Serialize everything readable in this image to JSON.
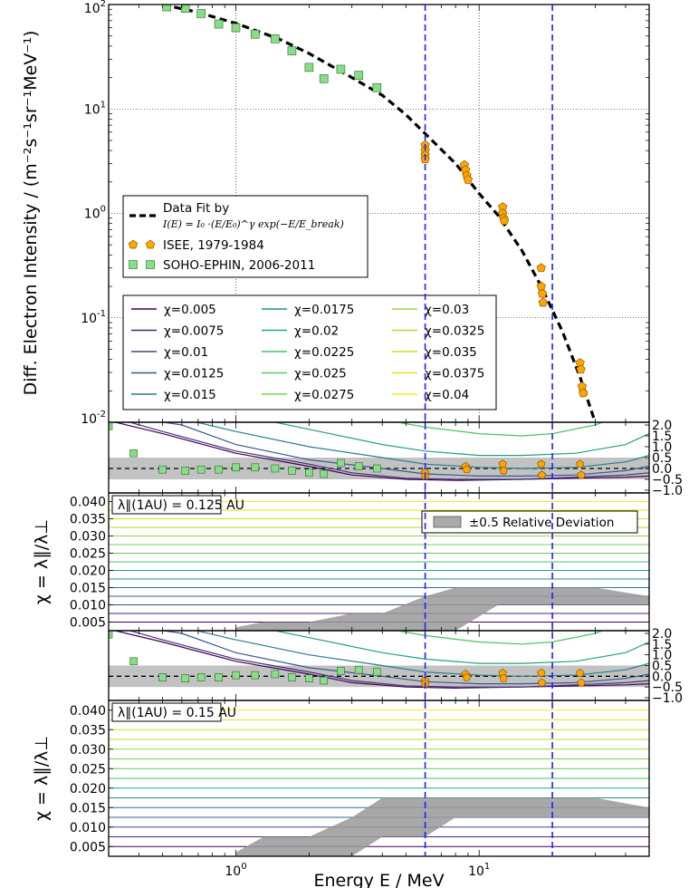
{
  "chart_data": [
    {
      "type": "scatter",
      "panel": "spectrum",
      "ylabel": "Diff. Electron Intensity / (m⁻²s⁻¹sr⁻¹MeV⁻¹)",
      "xscale": "log",
      "yscale": "log",
      "xlim": [
        0.3,
        50
      ],
      "ylim": [
        0.01,
        100
      ],
      "y_ticks": [
        {
          "v": 100,
          "base": "10",
          "exp": "2"
        },
        {
          "v": 10,
          "base": "10",
          "exp": "1"
        },
        {
          "v": 1,
          "base": "10",
          "exp": "0"
        },
        {
          "v": 0.1,
          "base": "10",
          "exp": "-1"
        },
        {
          "v": 0.01,
          "base": "10",
          "exp": "-2"
        }
      ],
      "vlines_MeV": [
        6,
        20
      ],
      "series": [
        {
          "name": "Data Fit by",
          "formula": "I(E) = I₀ ·(E/E₀)^γ exp(−E/E_break)",
          "style": "dashed",
          "color": "#000000",
          "x": [
            0.5,
            0.7,
            1.0,
            1.5,
            2.0,
            3.0,
            4.0,
            5.0,
            6.0,
            8.0,
            10.0,
            12.0,
            15.0,
            18.0,
            22.0,
            26.0,
            30.0
          ],
          "y": [
            100,
            84,
            66,
            47,
            34,
            20,
            13.5,
            8.8,
            5.8,
            3.0,
            1.55,
            0.95,
            0.44,
            0.2,
            0.074,
            0.027,
            0.01
          ]
        },
        {
          "name": "ISEE, 1979-1984",
          "marker": "pentagon",
          "color": "#ffa500",
          "x": [
            6.0,
            6.0,
            6.0,
            6.0,
            8.7,
            8.8,
            8.9,
            9.0,
            12.5,
            12.5,
            12.6,
            12.7,
            18.0,
            18.0,
            18.2,
            18.3,
            26.0,
            26.2,
            26.5,
            26.8
          ],
          "y": [
            4.5,
            4.0,
            3.6,
            3.3,
            2.9,
            2.6,
            2.3,
            2.1,
            1.15,
            1.0,
            0.9,
            0.85,
            0.3,
            0.2,
            0.17,
            0.14,
            0.037,
            0.032,
            0.022,
            0.019
          ]
        },
        {
          "name": "SOHO-EPHIN, 2006-2011",
          "marker": "square",
          "color": "#88dd88",
          "x": [
            0.52,
            0.62,
            0.72,
            0.85,
            1.0,
            1.2,
            1.45,
            1.7,
            2.0,
            2.3,
            2.7,
            3.2,
            3.8
          ],
          "y": [
            95,
            92,
            82,
            65,
            60,
            52,
            47,
            36,
            25,
            19.5,
            24,
            21,
            16
          ]
        }
      ]
    },
    {
      "type": "line",
      "panel": "relative-deviation-0.125",
      "xscale": "log",
      "xlim": [
        0.3,
        50
      ],
      "ylim": [
        -1.0,
        2.0
      ],
      "y_ticks": [
        "2.0",
        "1.5",
        "1.0",
        "0.5",
        "0.0",
        "−0.5",
        "−1.0"
      ],
      "band": [
        -0.5,
        0.5
      ],
      "ephin_x": [
        0.3,
        0.38,
        0.5,
        0.62,
        0.72,
        0.85,
        1.0,
        1.2,
        1.45,
        1.7,
        2.0,
        2.3,
        2.7,
        3.2,
        3.8
      ],
      "ephin_y": [
        1.95,
        0.7,
        -0.05,
        -0.1,
        -0.05,
        -0.05,
        0.05,
        0.05,
        0.0,
        -0.1,
        -0.2,
        -0.25,
        0.25,
        0.1,
        0.0
      ],
      "isee_x": [
        6.0,
        6.0,
        8.8,
        8.9,
        12.5,
        12.6,
        18.0,
        18.1,
        26.0,
        26.3
      ],
      "isee_y": [
        -0.2,
        -0.35,
        0.1,
        -0.05,
        0.2,
        -0.1,
        0.2,
        -0.3,
        0.2,
        -0.3
      ]
    },
    {
      "type": "area",
      "panel": "chi-0.125",
      "annotation": "λ∥(1AU) = 0.125 AU",
      "legend_label": "±0.5 Relative Deviation",
      "ylabel": "χ = λ∥/λ⊥",
      "xscale": "log",
      "xlim": [
        0.3,
        50
      ],
      "ylim": [
        0.0025,
        0.0425
      ],
      "y_ticks": [
        "0.040",
        "0.035",
        "0.030",
        "0.025",
        "0.020",
        "0.015",
        "0.010",
        "0.005"
      ],
      "band_x": [
        1.0,
        1.3,
        2.0,
        3.0,
        4.0,
        6.0,
        8.0,
        12.0,
        20.0,
        30.0,
        50.0
      ],
      "band_lo": [
        0.0025,
        0.0025,
        0.0025,
        0.0025,
        0.0025,
        0.0025,
        0.0025,
        0.01,
        0.01,
        0.01,
        0.01
      ],
      "band_hi": [
        0.0035,
        0.005,
        0.005,
        0.0075,
        0.0075,
        0.0125,
        0.015,
        0.015,
        0.015,
        0.015,
        0.0125
      ]
    },
    {
      "type": "line",
      "panel": "relative-deviation-0.15",
      "xscale": "log",
      "xlim": [
        0.3,
        50
      ],
      "ylim": [
        -1.0,
        2.0
      ],
      "y_ticks": [
        "2.0",
        "1.5",
        "1.0",
        "0.5",
        "0.0",
        "−0.5",
        "−1.0"
      ],
      "band": [
        -0.5,
        0.5
      ],
      "ephin_x": [
        0.3,
        0.38,
        0.5,
        0.62,
        0.72,
        0.85,
        1.0,
        1.2,
        1.45,
        1.7,
        2.0,
        2.3,
        2.7,
        3.2,
        3.8
      ],
      "ephin_y": [
        1.95,
        0.7,
        -0.05,
        -0.1,
        -0.05,
        -0.05,
        0.05,
        0.05,
        0.1,
        -0.05,
        -0.1,
        -0.2,
        0.25,
        0.3,
        0.2
      ],
      "isee_x": [
        6.0,
        6.0,
        8.8,
        8.9,
        12.5,
        12.6,
        18.0,
        18.1,
        26.0,
        26.3
      ],
      "isee_y": [
        -0.2,
        -0.35,
        0.1,
        -0.05,
        0.15,
        -0.1,
        0.15,
        -0.3,
        0.15,
        -0.3
      ]
    },
    {
      "type": "area",
      "panel": "chi-0.15",
      "annotation": "λ∥(1AU) = 0.15 AU",
      "ylabel": "χ = λ∥/λ⊥",
      "xlabel": "Energy E / MeV",
      "xscale": "log",
      "xlim": [
        0.3,
        50
      ],
      "ylim": [
        0.0025,
        0.0425
      ],
      "y_ticks": [
        "0.040",
        "0.035",
        "0.030",
        "0.025",
        "0.020",
        "0.015",
        "0.010",
        "0.005"
      ],
      "x_ticks": [
        {
          "v": 1,
          "base": "10",
          "exp": "0"
        },
        {
          "v": 10,
          "base": "10",
          "exp": "1"
        }
      ],
      "band_x": [
        1.0,
        1.3,
        2.0,
        3.0,
        4.0,
        6.0,
        8.0,
        12.0,
        20.0,
        30.0,
        50.0
      ],
      "band_lo": [
        0.0025,
        0.0025,
        0.0025,
        0.0025,
        0.0075,
        0.0075,
        0.0125,
        0.0125,
        0.0125,
        0.0125,
        0.0125
      ],
      "band_hi": [
        0.0035,
        0.0075,
        0.0075,
        0.0125,
        0.0175,
        0.0175,
        0.0175,
        0.0175,
        0.0175,
        0.0175,
        0.015
      ]
    }
  ],
  "chi_legend": {
    "prefix": "χ",
    "values": [
      "0.005",
      "0.0075",
      "0.01",
      "0.0125",
      "0.015",
      "0.0175",
      "0.02",
      "0.0225",
      "0.025",
      "0.0275",
      "0.03",
      "0.0325",
      "0.035",
      "0.0375",
      "0.04"
    ],
    "colors": [
      "#440154",
      "#472d7b",
      "#3b528b",
      "#2c728e",
      "#21918c",
      "#28ae80",
      "#5ec962",
      "#addc30",
      "#3d2b74",
      "#4b66a0",
      "#4f9a9a",
      "#3fb6a6",
      "#74d78a",
      "#c2e05a",
      "#fde725"
    ]
  },
  "chi_line_colors": [
    "#440154",
    "#482475",
    "#414487",
    "#355f8d",
    "#2a788e",
    "#21918c",
    "#22a884",
    "#44bf70",
    "#5ec962",
    "#7ad151",
    "#95d840",
    "#b5de2b",
    "#cde11d",
    "#e5e419",
    "#fde725"
  ],
  "curve_colors": [
    "#440154",
    "#46327e",
    "#365c8d",
    "#277f8e",
    "#1fa187",
    "#4ac16d"
  ],
  "lang": "en"
}
